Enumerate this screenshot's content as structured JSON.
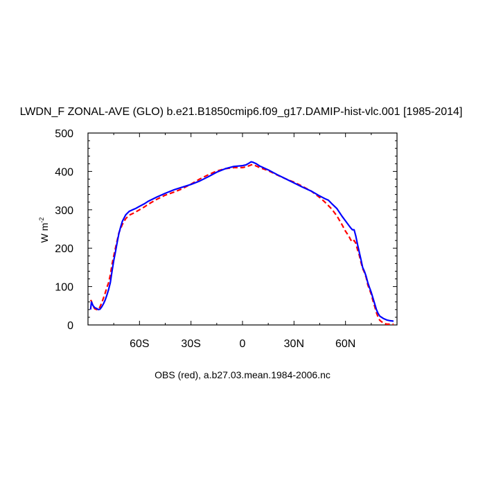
{
  "chart_data": {
    "type": "line",
    "title": "LWDN_F ZONAL-AVE (GLO) b.e21.B1850cmip6.f09_g17.DAMIP-hist-vlc.001 [1985-2014]",
    "ylabel": "W m",
    "ylabel_sup": "-2",
    "xlabel": "OBS (red), a.b27.03.mean.1984-2006.nc",
    "xlim": [
      -90,
      90
    ],
    "ylim": [
      0,
      500
    ],
    "x_ticks": [
      -60,
      -30,
      0,
      30,
      60
    ],
    "x_tick_labels": [
      "60S",
      "30S",
      "0",
      "30N",
      "60N"
    ],
    "y_ticks": [
      0,
      100,
      200,
      300,
      400,
      500
    ],
    "y_tick_labels": [
      "0",
      "100",
      "200",
      "300",
      "400",
      "500"
    ],
    "grid": false,
    "series": [
      {
        "color": "#0000ff",
        "dash": "solid",
        "x": [
          -88.5,
          -88,
          -87,
          -86,
          -85,
          -84,
          -83,
          -82,
          -81,
          -80,
          -79,
          -78,
          -77,
          -76,
          -75,
          -74,
          -73,
          -72,
          -71,
          -70,
          -68,
          -66,
          -64,
          -62,
          -60,
          -57,
          -55,
          -50,
          -45,
          -40,
          -35,
          -30,
          -25,
          -20,
          -15,
          -10,
          -5,
          0,
          2,
          4,
          5,
          6,
          8,
          10,
          15,
          20,
          25,
          30,
          35,
          40,
          45,
          48,
          50,
          52,
          55,
          58,
          60,
          62,
          63,
          64,
          65,
          66,
          67,
          68,
          69,
          70,
          71,
          72,
          73,
          74,
          75,
          76,
          77,
          78,
          79,
          80,
          82,
          84,
          86,
          88
        ],
        "y": [
          40,
          60,
          50,
          45,
          43,
          40,
          41,
          47,
          55,
          65,
          78,
          92,
          110,
          140,
          168,
          190,
          215,
          238,
          255,
          270,
          287,
          296,
          300,
          304,
          309,
          316,
          322,
          333,
          343,
          352,
          359,
          366,
          375,
          386,
          398,
          407,
          413,
          415,
          417,
          422,
          425,
          424,
          420,
          414,
          404,
          392,
          381,
          370,
          359,
          349,
          336,
          329,
          325,
          316,
          303,
          283,
          271,
          259,
          253,
          248,
          248,
          232,
          210,
          190,
          170,
          150,
          140,
          127,
          110,
          97,
          85,
          70,
          55,
          40,
          30,
          23,
          17,
          13,
          11,
          10
        ]
      },
      {
        "color": "#ff0000",
        "dash": "dashed",
        "x": [
          -88.5,
          -88,
          -87,
          -86,
          -85,
          -84,
          -83,
          -82,
          -81,
          -80,
          -79,
          -78,
          -77,
          -76,
          -75,
          -74,
          -73,
          -72,
          -71,
          -70,
          -68,
          -66,
          -64,
          -62,
          -60,
          -57,
          -55,
          -50,
          -45,
          -40,
          -35,
          -30,
          -25,
          -20,
          -15,
          -10,
          -5,
          0,
          2,
          4,
          5,
          6,
          8,
          10,
          15,
          20,
          25,
          30,
          35,
          40,
          45,
          48,
          50,
          52,
          55,
          58,
          60,
          62,
          63,
          64,
          65,
          66,
          67,
          68,
          69,
          70,
          71,
          72,
          73,
          74,
          75,
          76,
          77,
          78,
          79,
          80,
          82,
          84,
          86,
          88
        ],
        "y": [
          65,
          62,
          48,
          42,
          40,
          40,
          47,
          58,
          70,
          83,
          98,
          110,
          130,
          158,
          180,
          200,
          220,
          240,
          251,
          262,
          277,
          286,
          290,
          295,
          300,
          308,
          314,
          327,
          338,
          346,
          355,
          367,
          380,
          391,
          401,
          407,
          410,
          410,
          412,
          415,
          417,
          418,
          414,
          410,
          402,
          391,
          381,
          372,
          361,
          349,
          332,
          320,
          311,
          302,
          284,
          261,
          244,
          231,
          222,
          216,
          220,
          213,
          196,
          182,
          163,
          147,
          137,
          124,
          104,
          92,
          80,
          63,
          48,
          32,
          20,
          12,
          5,
          2,
          2,
          2
        ]
      }
    ]
  }
}
